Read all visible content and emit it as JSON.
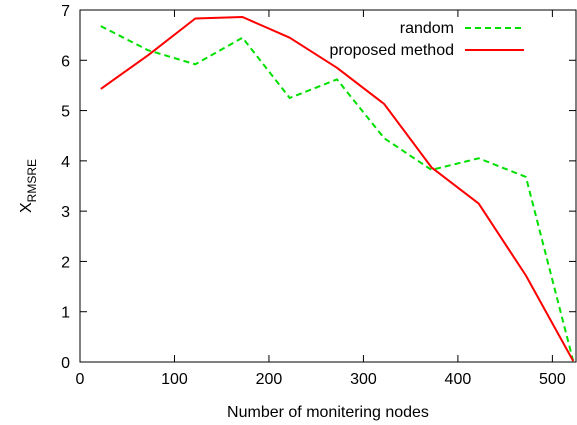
{
  "chart_data": {
    "type": "line",
    "xlabel": "Number of monitering nodes",
    "ylabel_main": "X",
    "ylabel_sub": "RMSRE",
    "xlim": [
      0,
      525
    ],
    "ylim": [
      0,
      7
    ],
    "xticks": [
      0,
      100,
      200,
      300,
      400,
      500
    ],
    "yticks": [
      0,
      1,
      2,
      3,
      4,
      5,
      6,
      7
    ],
    "grid": false,
    "legend_position": "top-right",
    "series": [
      {
        "name": "random",
        "color": "#00e000",
        "style": "dashed",
        "x": [
          22,
          72,
          122,
          172,
          222,
          272,
          322,
          372,
          422,
          472,
          522
        ],
        "y": [
          6.68,
          6.2,
          5.92,
          6.45,
          5.25,
          5.62,
          4.45,
          3.82,
          4.05,
          3.68,
          0.02
        ]
      },
      {
        "name": "proposed method",
        "color": "#ff0000",
        "style": "solid",
        "x": [
          22,
          72,
          122,
          172,
          222,
          272,
          322,
          372,
          422,
          472,
          522
        ],
        "y": [
          5.43,
          6.1,
          6.83,
          6.86,
          6.45,
          5.85,
          5.13,
          3.87,
          3.15,
          1.72,
          0.02
        ]
      }
    ]
  }
}
